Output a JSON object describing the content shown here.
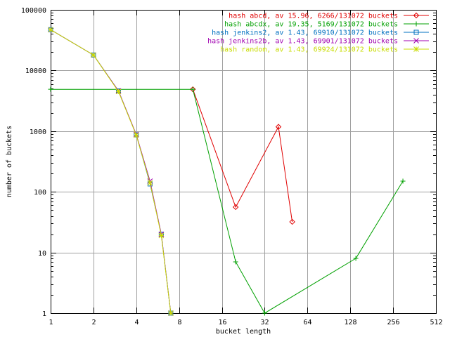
{
  "chart_data": {
    "type": "line",
    "title": "",
    "xlabel": "bucket length",
    "ylabel": "number of buckets",
    "x_scale": "log2",
    "y_scale": "log10",
    "xlim": [
      1,
      512
    ],
    "ylim": [
      1,
      100000
    ],
    "x_ticks": [
      {
        "value": 1,
        "label": "1"
      },
      {
        "value": 2,
        "label": "2"
      },
      {
        "value": 4,
        "label": "4"
      },
      {
        "value": 8,
        "label": "8"
      },
      {
        "value": 16,
        "label": "16"
      },
      {
        "value": 32,
        "label": "32"
      },
      {
        "value": 64,
        "label": "64"
      },
      {
        "value": 128,
        "label": "128"
      },
      {
        "value": 256,
        "label": "256"
      },
      {
        "value": 512,
        "label": "512"
      }
    ],
    "y_ticks": [
      {
        "value": 1,
        "label": "1"
      },
      {
        "value": 10,
        "label": "10"
      },
      {
        "value": 100,
        "label": "100"
      },
      {
        "value": 1000,
        "label": "1000"
      },
      {
        "value": 10000,
        "label": "10000"
      },
      {
        "value": 100000,
        "label": "100000"
      }
    ],
    "grid": true,
    "legend_position": "top-right",
    "series": [
      {
        "name": "hash abcd, av 15.96, 6266/131072 buckets",
        "color": "#e00000",
        "marker": "diamond",
        "points": [
          [
            10,
            4900
          ],
          [
            20,
            56
          ],
          [
            40,
            1180
          ],
          [
            50,
            32
          ]
        ]
      },
      {
        "name": "hash abcdx, av 19.35, 5169/131072 buckets",
        "color": "#00a000",
        "marker": "plus",
        "points": [
          [
            1,
            4900
          ],
          [
            10,
            4900
          ],
          [
            20,
            7
          ],
          [
            32,
            1
          ],
          [
            140,
            8
          ],
          [
            300,
            150
          ]
        ]
      },
      {
        "name": "hash jenkins2, av 1.43, 69910/131072 buckets",
        "color": "#0070c0",
        "marker": "square",
        "points": [
          [
            1,
            47000
          ],
          [
            2,
            18000
          ],
          [
            3,
            4600
          ],
          [
            4,
            870
          ],
          [
            5,
            135
          ],
          [
            6,
            20
          ],
          [
            7,
            1
          ]
        ]
      },
      {
        "name": "hash jenkins2b, av 1.43, 69901/131072 buckets",
        "color": "#a000b0",
        "marker": "cross",
        "points": [
          [
            1,
            47000
          ],
          [
            2,
            18000
          ],
          [
            3,
            4600
          ],
          [
            4,
            880
          ],
          [
            5,
            150
          ],
          [
            6,
            20
          ],
          [
            7,
            1
          ]
        ]
      },
      {
        "name": "hash random, av 1.43, 69924/131072 buckets",
        "color": "#c8dc00",
        "marker": "star",
        "points": [
          [
            1,
            47000
          ],
          [
            2,
            18000
          ],
          [
            3,
            4500
          ],
          [
            4,
            860
          ],
          [
            5,
            140
          ],
          [
            6,
            19
          ],
          [
            7,
            1
          ]
        ]
      }
    ]
  }
}
